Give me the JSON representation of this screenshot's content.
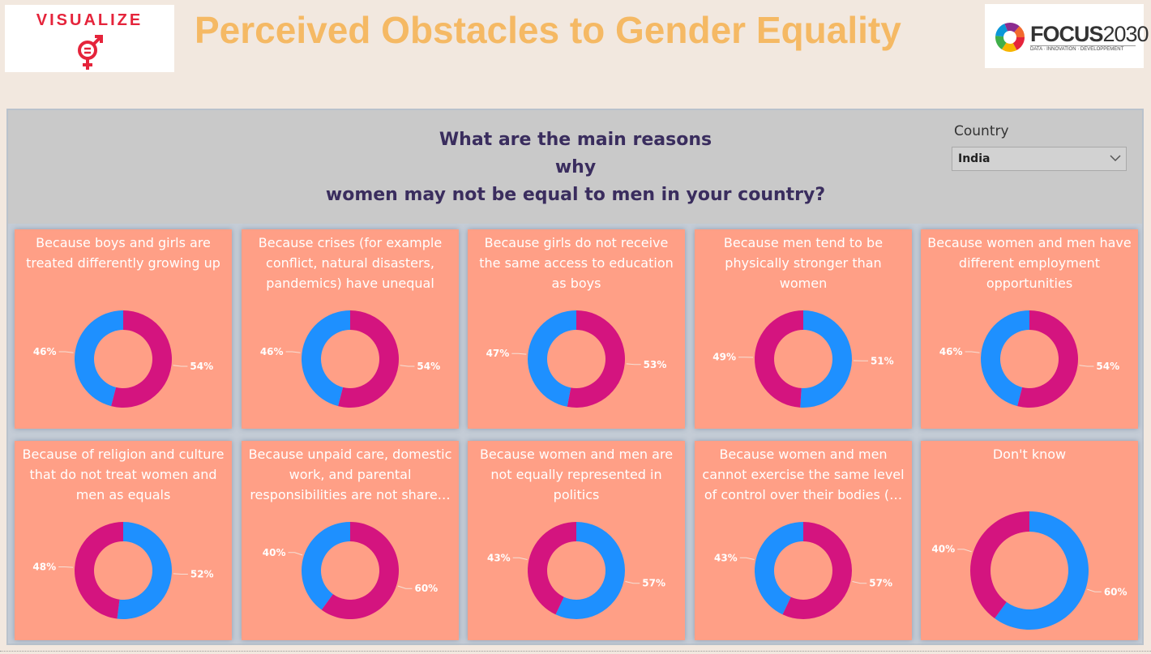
{
  "header": {
    "logo_left_text": "VISUALIZE",
    "title": "Perceived Obstacles to Gender Equality",
    "logo_right_brand": "FOCUS",
    "logo_right_year": "2030",
    "logo_right_tag": "DATA · INNOVATION · DEVELOPPEMENT"
  },
  "filter": {
    "label": "Country",
    "value": "India"
  },
  "question": {
    "line1": "What are the main reasons",
    "line2": "why",
    "line3": "women may not be equal to men in your country?"
  },
  "colors": {
    "blue": "#1e90ff",
    "magenta": "#d4147f",
    "card": "#ff9f86"
  },
  "chart_data": [
    {
      "type": "pie",
      "title": "Because boys and girls are treated differently growing up",
      "blue_pct": 46,
      "magenta_pct": 54,
      "blue_label": "46%",
      "magenta_label": "54%"
    },
    {
      "type": "pie",
      "title": "Because crises (for example conflict, natural disasters, pandemics) have unequal effe…",
      "blue_pct": 46,
      "magenta_pct": 54,
      "blue_label": "46%",
      "magenta_label": "54%"
    },
    {
      "type": "pie",
      "title": "Because girls do not receive the same access to education as boys",
      "blue_pct": 47,
      "magenta_pct": 53,
      "blue_label": "47%",
      "magenta_label": "53%"
    },
    {
      "type": "pie",
      "title": "Because men tend to be physically stronger than women",
      "blue_pct": 51,
      "magenta_pct": 49,
      "blue_label": "51%",
      "magenta_label": "49%"
    },
    {
      "type": "pie",
      "title": "Because women and men have different employment opportunities",
      "blue_pct": 46,
      "magenta_pct": 54,
      "blue_label": "46%",
      "magenta_label": "54%"
    },
    {
      "type": "pie",
      "title": "Because of religion and culture that do not treat women and men as equals",
      "blue_pct": 52,
      "magenta_pct": 48,
      "blue_label": "52%",
      "magenta_label": "48%"
    },
    {
      "type": "pie",
      "title": "Because unpaid care, domestic work, and parental responsibilities are not share…",
      "blue_pct": 40,
      "magenta_pct": 60,
      "blue_label": "40%",
      "magenta_label": "60%"
    },
    {
      "type": "pie",
      "title": "Because women and men are not equally represented in politics",
      "blue_pct": 57,
      "magenta_pct": 43,
      "blue_label": "57%",
      "magenta_label": "43%"
    },
    {
      "type": "pie",
      "title": "Because women and men cannot exercise the same level of control over their bodies (…",
      "blue_pct": 43,
      "magenta_pct": 57,
      "blue_label": "43%",
      "magenta_label": "57%"
    },
    {
      "type": "pie",
      "title": "Don't know",
      "blue_pct": 60,
      "magenta_pct": 40,
      "blue_label": "60%",
      "magenta_label": "40%"
    }
  ]
}
